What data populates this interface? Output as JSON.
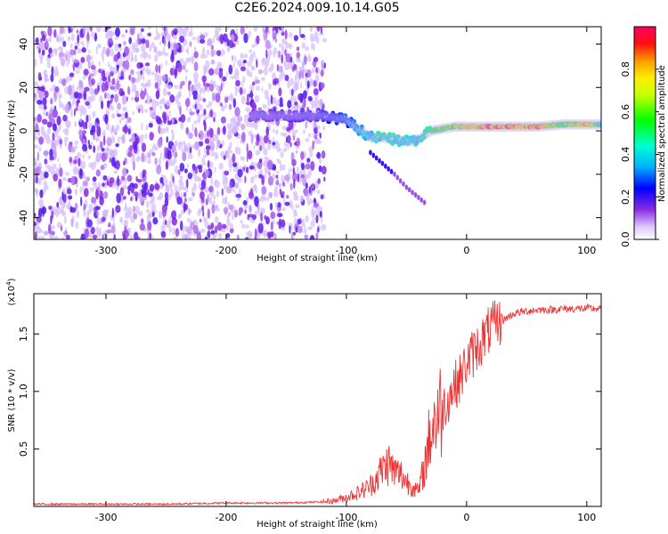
{
  "title": "C2E6.2024.009.10.14.G05",
  "chart_data": [
    {
      "type": "heatmap",
      "xlabel": "Height of straight line (km)",
      "ylabel": "Frequency (Hz)",
      "xlim": [
        -360,
        112
      ],
      "ylim": [
        -50,
        48
      ],
      "xticks": [
        -300,
        -200,
        -100,
        0,
        100
      ],
      "yticks": [
        -40,
        -20,
        0,
        20,
        40
      ],
      "colorbar": {
        "label": "Normalized spectral amplitude",
        "ticks": [
          0.0,
          0.2,
          0.4,
          0.6,
          0.8
        ],
        "range": [
          0,
          1
        ]
      },
      "noise_region_x": [
        -360,
        -118
      ],
      "signal_track": [
        {
          "x": -180,
          "y": 7
        },
        {
          "x": -160,
          "y": 7
        },
        {
          "x": -140,
          "y": 7
        },
        {
          "x": -120,
          "y": 7
        },
        {
          "x": -100,
          "y": 5
        },
        {
          "x": -90,
          "y": 1
        },
        {
          "x": -80,
          "y": -3
        },
        {
          "x": -70,
          "y": -3
        },
        {
          "x": -60,
          "y": -4
        },
        {
          "x": -50,
          "y": -5
        },
        {
          "x": -40,
          "y": -4
        },
        {
          "x": -30,
          "y": 0
        },
        {
          "x": -20,
          "y": 1
        },
        {
          "x": -10,
          "y": 2
        },
        {
          "x": 0,
          "y": 2
        },
        {
          "x": 20,
          "y": 2
        },
        {
          "x": 40,
          "y": 2
        },
        {
          "x": 60,
          "y": 2
        },
        {
          "x": 80,
          "y": 3
        },
        {
          "x": 100,
          "y": 3
        },
        {
          "x": 112,
          "y": 3
        }
      ],
      "track_amplitude": [
        {
          "x": -180,
          "v": 0.18
        },
        {
          "x": -120,
          "v": 0.22
        },
        {
          "x": -100,
          "v": 0.3
        },
        {
          "x": -80,
          "v": 0.45
        },
        {
          "x": -60,
          "v": 0.5
        },
        {
          "x": -40,
          "v": 0.45
        },
        {
          "x": -20,
          "v": 0.65
        },
        {
          "x": 0,
          "v": 0.75
        },
        {
          "x": 20,
          "v": 0.95
        },
        {
          "x": 60,
          "v": 0.9
        },
        {
          "x": 80,
          "v": 0.6
        },
        {
          "x": 100,
          "v": 0.9
        },
        {
          "x": 112,
          "v": 0.5
        }
      ],
      "branch_track": [
        {
          "x": -80,
          "y": -10
        },
        {
          "x": -60,
          "y": -20
        },
        {
          "x": -50,
          "y": -26
        },
        {
          "x": -35,
          "y": -33
        }
      ]
    },
    {
      "type": "line",
      "xlabel": "Height of straight line (km)",
      "ylabel": "SNR (10 * v/v)",
      "y_multiplier": "(x10",
      "y_multiplier_exp": "4",
      "y_multiplier_close": ")",
      "xlim": [
        -360,
        112
      ],
      "ylim": [
        0,
        1.85
      ],
      "xticks": [
        -300,
        -200,
        -100,
        0,
        100
      ],
      "yticks": [
        0.5,
        1.0,
        1.5
      ],
      "series": [
        {
          "color": "#ee3333",
          "x": [
            -360,
            -300,
            -250,
            -200,
            -150,
            -120,
            -110,
            -100,
            -90,
            -80,
            -70,
            -65,
            -60,
            -55,
            -50,
            -45,
            -40,
            -35,
            -30,
            -25,
            -20,
            -15,
            -10,
            -5,
            0,
            10,
            20,
            30,
            40,
            50,
            60,
            70,
            80,
            90,
            100,
            112
          ],
          "y": [
            0.02,
            0.02,
            0.02,
            0.03,
            0.03,
            0.04,
            0.05,
            0.08,
            0.12,
            0.18,
            0.32,
            0.38,
            0.3,
            0.28,
            0.22,
            0.18,
            0.12,
            0.35,
            0.65,
            0.8,
            0.85,
            0.95,
            1.05,
            1.12,
            1.25,
            1.4,
            1.55,
            1.62,
            1.68,
            1.7,
            1.71,
            1.71,
            1.72,
            1.72,
            1.72,
            1.72
          ]
        }
      ]
    }
  ],
  "colors": {
    "signal": "#ee3333",
    "noise": "#7a22ee"
  }
}
